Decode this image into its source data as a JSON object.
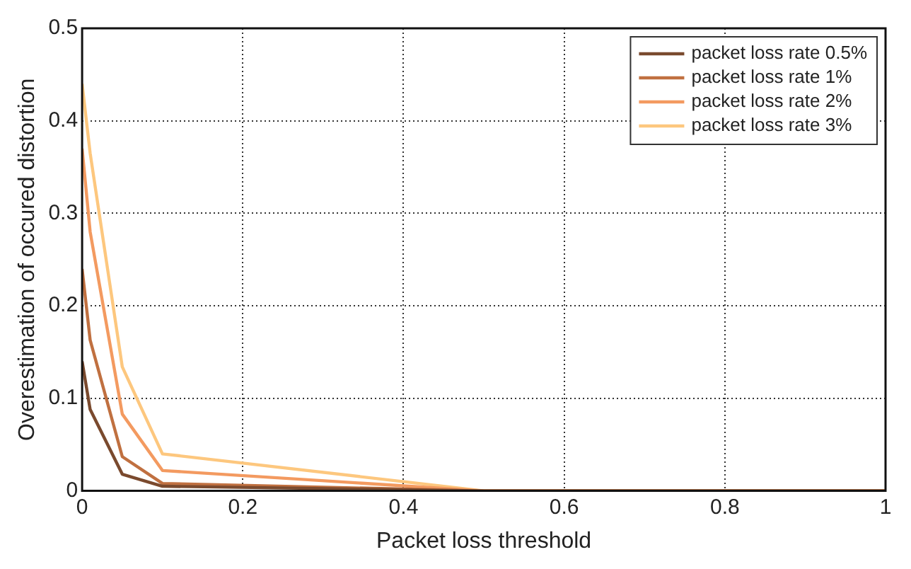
{
  "chart_data": {
    "type": "line",
    "xlabel": "Packet loss threshold",
    "ylabel": "Overestimation of occured distortion",
    "x": [
      0,
      0.01,
      0.05,
      0.1,
      0.5,
      1
    ],
    "series": [
      {
        "name": "packet loss rate 0.5%",
        "color": "#7a4a2e",
        "values": [
          0.14,
          0.088,
          0.018,
          0.005,
          0,
          0
        ]
      },
      {
        "name": "packet loss rate 1%",
        "color": "#c07040",
        "values": [
          0.24,
          0.163,
          0.037,
          0.008,
          0,
          0
        ]
      },
      {
        "name": "packet loss rate 2%",
        "color": "#f39a60",
        "values": [
          0.37,
          0.28,
          0.083,
          0.022,
          0,
          0
        ]
      },
      {
        "name": "packet loss rate 3%",
        "color": "#fdc77e",
        "values": [
          0.44,
          0.365,
          0.134,
          0.04,
          0,
          0
        ]
      }
    ],
    "xlim": [
      0,
      1
    ],
    "xticks": [
      0,
      0.2,
      0.4,
      0.6,
      0.8,
      1
    ],
    "ylim": [
      0,
      0.5
    ],
    "yticks": [
      0,
      0.1,
      0.2,
      0.3,
      0.4,
      0.5
    ],
    "grid": true,
    "legend": "top right",
    "marker": "none",
    "line_style": "solid"
  }
}
